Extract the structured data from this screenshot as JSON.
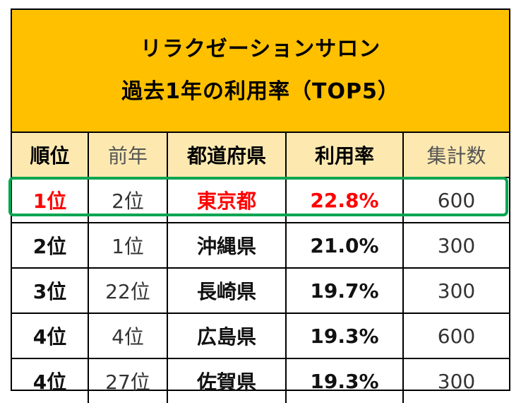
{
  "title": {
    "line1": "リラクゼーションサロン",
    "line2": "過去1年の利用率（TOP5）"
  },
  "headers": [
    "順位",
    "前年",
    "都道府県",
    "利用率",
    "集計数"
  ],
  "rows": [
    {
      "rank": "1位",
      "prev": "2位",
      "pref": "東京都",
      "rate": "22.8%",
      "count": "600"
    },
    {
      "rank": "2位",
      "prev": "1位",
      "pref": "沖縄県",
      "rate": "21.0%",
      "count": "300"
    },
    {
      "rank": "3位",
      "prev": "22位",
      "pref": "長崎県",
      "rate": "19.7%",
      "count": "300"
    },
    {
      "rank": "4位",
      "prev": "4位",
      "pref": "広島県",
      "rate": "19.3%",
      "count": "600"
    },
    {
      "rank": "4位",
      "prev": "27位",
      "pref": "佐賀県",
      "rate": "19.3%",
      "count": "300"
    }
  ],
  "colors": {
    "title_bg": "#ffc000",
    "header_bg": "#fde9b0",
    "top_text": "#ff0000",
    "highlight_border": "#00a550"
  }
}
